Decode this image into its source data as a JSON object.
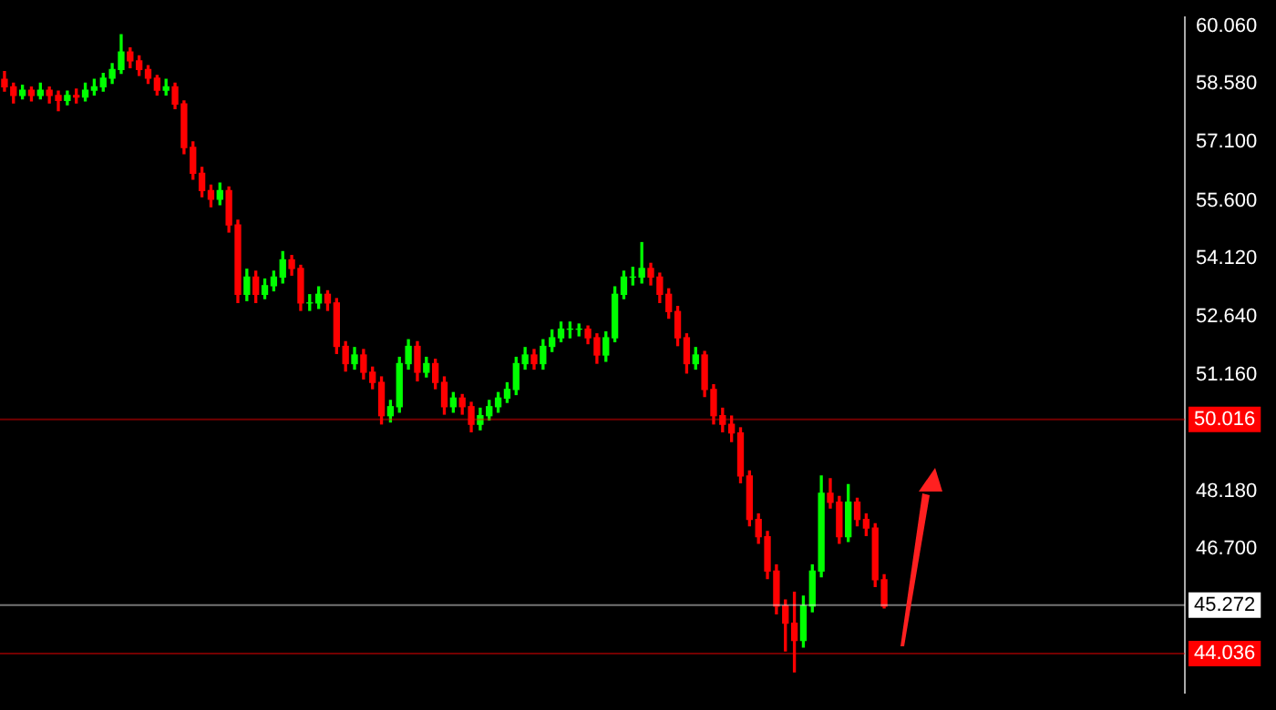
{
  "chart_data": {
    "type": "candlestick",
    "categories": [
      null,
      null,
      null,
      null,
      null,
      null,
      null,
      null,
      null,
      null,
      null,
      null,
      null,
      null,
      null,
      null,
      null,
      null,
      null,
      null,
      null,
      null,
      null,
      null,
      null,
      null,
      null,
      null,
      null,
      null,
      null,
      null,
      null,
      null,
      null,
      null,
      null,
      null,
      null,
      null,
      null,
      null,
      null,
      null,
      null,
      null,
      null,
      null,
      null,
      null,
      null,
      null,
      null,
      null,
      null,
      null,
      null,
      null,
      null,
      null,
      null,
      null,
      null,
      null,
      null,
      null,
      null,
      null,
      null,
      null,
      null,
      null,
      null,
      null,
      null,
      null,
      null,
      null,
      null,
      null,
      null,
      null,
      null,
      null,
      null,
      null,
      null,
      null,
      null,
      null,
      null,
      null,
      null,
      null,
      null,
      null,
      null,
      null,
      null,
      null,
      null,
      null,
      null,
      null,
      null,
      null,
      null,
      null,
      null,
      null,
      null,
      null,
      null,
      null,
      null,
      null,
      null,
      null,
      null,
      null,
      null,
      null,
      null,
      null,
      null,
      null,
      null,
      null,
      null,
      null,
      null,
      null
    ],
    "ohlc": [
      [
        58.7,
        58.9,
        58.4,
        58.51
      ],
      [
        58.51,
        58.6,
        58.1,
        58.29
      ],
      [
        58.29,
        58.55,
        58.2,
        58.42
      ],
      [
        58.42,
        58.5,
        58.15,
        58.29
      ],
      [
        58.29,
        58.6,
        58.2,
        58.42
      ],
      [
        58.42,
        58.5,
        58.1,
        58.29
      ],
      [
        58.29,
        58.4,
        57.9,
        58.16
      ],
      [
        58.16,
        58.4,
        58.05,
        58.29
      ],
      [
        58.29,
        58.45,
        58.1,
        58.25
      ],
      [
        58.25,
        58.6,
        58.15,
        58.42
      ],
      [
        58.42,
        58.7,
        58.3,
        58.51
      ],
      [
        58.51,
        58.85,
        58.4,
        58.73
      ],
      [
        58.73,
        59.1,
        58.6,
        58.95
      ],
      [
        58.95,
        59.84,
        58.85,
        59.4
      ],
      [
        59.4,
        59.5,
        59.0,
        59.17
      ],
      [
        59.17,
        59.3,
        58.8,
        58.95
      ],
      [
        58.95,
        59.05,
        58.6,
        58.73
      ],
      [
        58.73,
        58.8,
        58.3,
        58.42
      ],
      [
        58.42,
        58.7,
        58.3,
        58.51
      ],
      [
        58.51,
        58.6,
        57.95,
        58.07
      ],
      [
        58.07,
        58.15,
        56.8,
        56.96
      ],
      [
        56.96,
        57.1,
        56.15,
        56.3
      ],
      [
        56.3,
        56.45,
        55.7,
        55.86
      ],
      [
        55.86,
        56.0,
        55.45,
        55.64
      ],
      [
        55.64,
        56.05,
        55.5,
        55.86
      ],
      [
        55.86,
        55.95,
        54.8,
        54.98
      ],
      [
        54.98,
        55.1,
        53.0,
        53.21
      ],
      [
        53.21,
        53.85,
        53.05,
        53.65
      ],
      [
        53.65,
        53.8,
        53.0,
        53.21
      ],
      [
        53.21,
        53.6,
        53.1,
        53.43
      ],
      [
        53.43,
        53.8,
        53.3,
        53.65
      ],
      [
        53.65,
        54.3,
        53.5,
        54.09
      ],
      [
        54.09,
        54.2,
        53.7,
        53.87
      ],
      [
        53.87,
        53.95,
        52.8,
        52.99
      ],
      [
        52.99,
        53.2,
        52.8,
        52.99
      ],
      [
        52.99,
        53.4,
        52.85,
        53.21
      ],
      [
        53.21,
        53.3,
        52.8,
        52.99
      ],
      [
        52.99,
        53.1,
        51.7,
        51.88
      ],
      [
        51.88,
        52.0,
        51.25,
        51.44
      ],
      [
        51.44,
        51.85,
        51.3,
        51.66
      ],
      [
        51.66,
        51.8,
        51.05,
        51.22
      ],
      [
        51.22,
        51.35,
        50.8,
        50.96
      ],
      [
        50.96,
        51.1,
        49.9,
        50.11
      ],
      [
        50.11,
        50.5,
        49.95,
        50.34
      ],
      [
        50.34,
        51.6,
        50.2,
        51.44
      ],
      [
        51.44,
        52.05,
        51.3,
        51.88
      ],
      [
        51.88,
        52.0,
        51.0,
        51.22
      ],
      [
        51.22,
        51.6,
        51.1,
        51.44
      ],
      [
        51.44,
        51.55,
        50.8,
        50.96
      ],
      [
        50.96,
        51.1,
        50.15,
        50.34
      ],
      [
        50.34,
        50.7,
        50.2,
        50.56
      ],
      [
        50.56,
        50.65,
        50.15,
        50.34
      ],
      [
        50.34,
        50.45,
        49.7,
        49.89
      ],
      [
        49.89,
        50.3,
        49.75,
        50.11
      ],
      [
        50.11,
        50.5,
        50.0,
        50.34
      ],
      [
        50.34,
        50.7,
        50.2,
        50.56
      ],
      [
        50.56,
        50.95,
        50.45,
        50.78
      ],
      [
        50.78,
        51.6,
        50.65,
        51.44
      ],
      [
        51.44,
        51.85,
        51.3,
        51.66
      ],
      [
        51.66,
        51.8,
        51.3,
        51.44
      ],
      [
        51.44,
        52.05,
        51.3,
        51.88
      ],
      [
        51.88,
        52.3,
        51.75,
        52.1
      ],
      [
        52.1,
        52.5,
        52.0,
        52.32
      ],
      [
        52.32,
        52.5,
        52.1,
        52.32
      ],
      [
        52.32,
        52.45,
        52.15,
        52.32
      ],
      [
        52.32,
        52.4,
        51.95,
        52.1
      ],
      [
        52.1,
        52.2,
        51.45,
        51.66
      ],
      [
        51.66,
        52.25,
        51.5,
        52.1
      ],
      [
        52.1,
        53.4,
        52.0,
        53.21
      ],
      [
        53.21,
        53.8,
        53.1,
        53.65
      ],
      [
        53.65,
        53.9,
        53.45,
        53.65
      ],
      [
        53.65,
        54.53,
        53.5,
        53.87
      ],
      [
        53.87,
        54.0,
        53.45,
        53.65
      ],
      [
        53.65,
        53.75,
        53.0,
        53.21
      ],
      [
        53.21,
        53.35,
        52.6,
        52.77
      ],
      [
        52.77,
        52.9,
        51.9,
        52.1
      ],
      [
        52.1,
        52.2,
        51.2,
        51.44
      ],
      [
        51.44,
        51.85,
        51.3,
        51.66
      ],
      [
        51.66,
        51.75,
        50.6,
        50.78
      ],
      [
        50.78,
        50.9,
        49.9,
        50.11
      ],
      [
        50.11,
        50.3,
        49.7,
        49.89
      ],
      [
        49.89,
        50.1,
        49.45,
        49.67
      ],
      [
        49.67,
        49.8,
        48.4,
        48.57
      ],
      [
        48.57,
        48.7,
        47.3,
        47.46
      ],
      [
        47.46,
        47.6,
        46.85,
        47.02
      ],
      [
        47.02,
        47.15,
        45.95,
        46.14
      ],
      [
        46.14,
        46.3,
        45.05,
        45.25
      ],
      [
        45.25,
        45.4,
        44.1,
        44.81
      ],
      [
        44.81,
        45.6,
        43.57,
        44.37
      ],
      [
        44.37,
        45.5,
        44.2,
        45.25
      ],
      [
        45.25,
        46.3,
        45.1,
        46.14
      ],
      [
        46.14,
        48.57,
        46.0,
        48.13
      ],
      [
        48.13,
        48.5,
        47.75,
        47.9
      ],
      [
        47.9,
        48.05,
        46.85,
        47.02
      ],
      [
        47.02,
        48.35,
        46.9,
        47.9
      ],
      [
        47.9,
        48.0,
        47.3,
        47.46
      ],
      [
        47.46,
        47.6,
        47.05,
        47.24
      ],
      [
        47.24,
        47.35,
        45.75,
        45.92
      ],
      [
        45.92,
        46.05,
        45.2,
        45.25
      ],
      null,
      null,
      null,
      null,
      null,
      null,
      null,
      null,
      null,
      null,
      null,
      null,
      null,
      null,
      null,
      null,
      null,
      null,
      null,
      null,
      null,
      null,
      null,
      null,
      null,
      null,
      null,
      null,
      null,
      null,
      null,
      null,
      null
    ],
    "ylim": [
      43.04,
      60.28
    ],
    "yticks": [
      {
        "value": 60.06,
        "label": "60.060"
      },
      {
        "value": 58.58,
        "label": "58.580"
      },
      {
        "value": 57.1,
        "label": "57.100"
      },
      {
        "value": 55.6,
        "label": "55.600"
      },
      {
        "value": 54.12,
        "label": "54.120"
      },
      {
        "value": 52.64,
        "label": "52.640"
      },
      {
        "value": 51.16,
        "label": "51.160"
      },
      {
        "value": 48.18,
        "label": "48.180"
      },
      {
        "value": 46.7,
        "label": "46.700"
      }
    ],
    "ref_lines": [
      {
        "axis": "y",
        "value": 50.016,
        "label": "50.016",
        "color": "#ff0000"
      },
      {
        "axis": "y",
        "value": 45.272,
        "label": "45.272",
        "color": "#ffffff"
      },
      {
        "axis": "y",
        "value": 44.036,
        "label": "44.036",
        "color": "#ff0000"
      }
    ],
    "grid": false,
    "legend": false
  }
}
